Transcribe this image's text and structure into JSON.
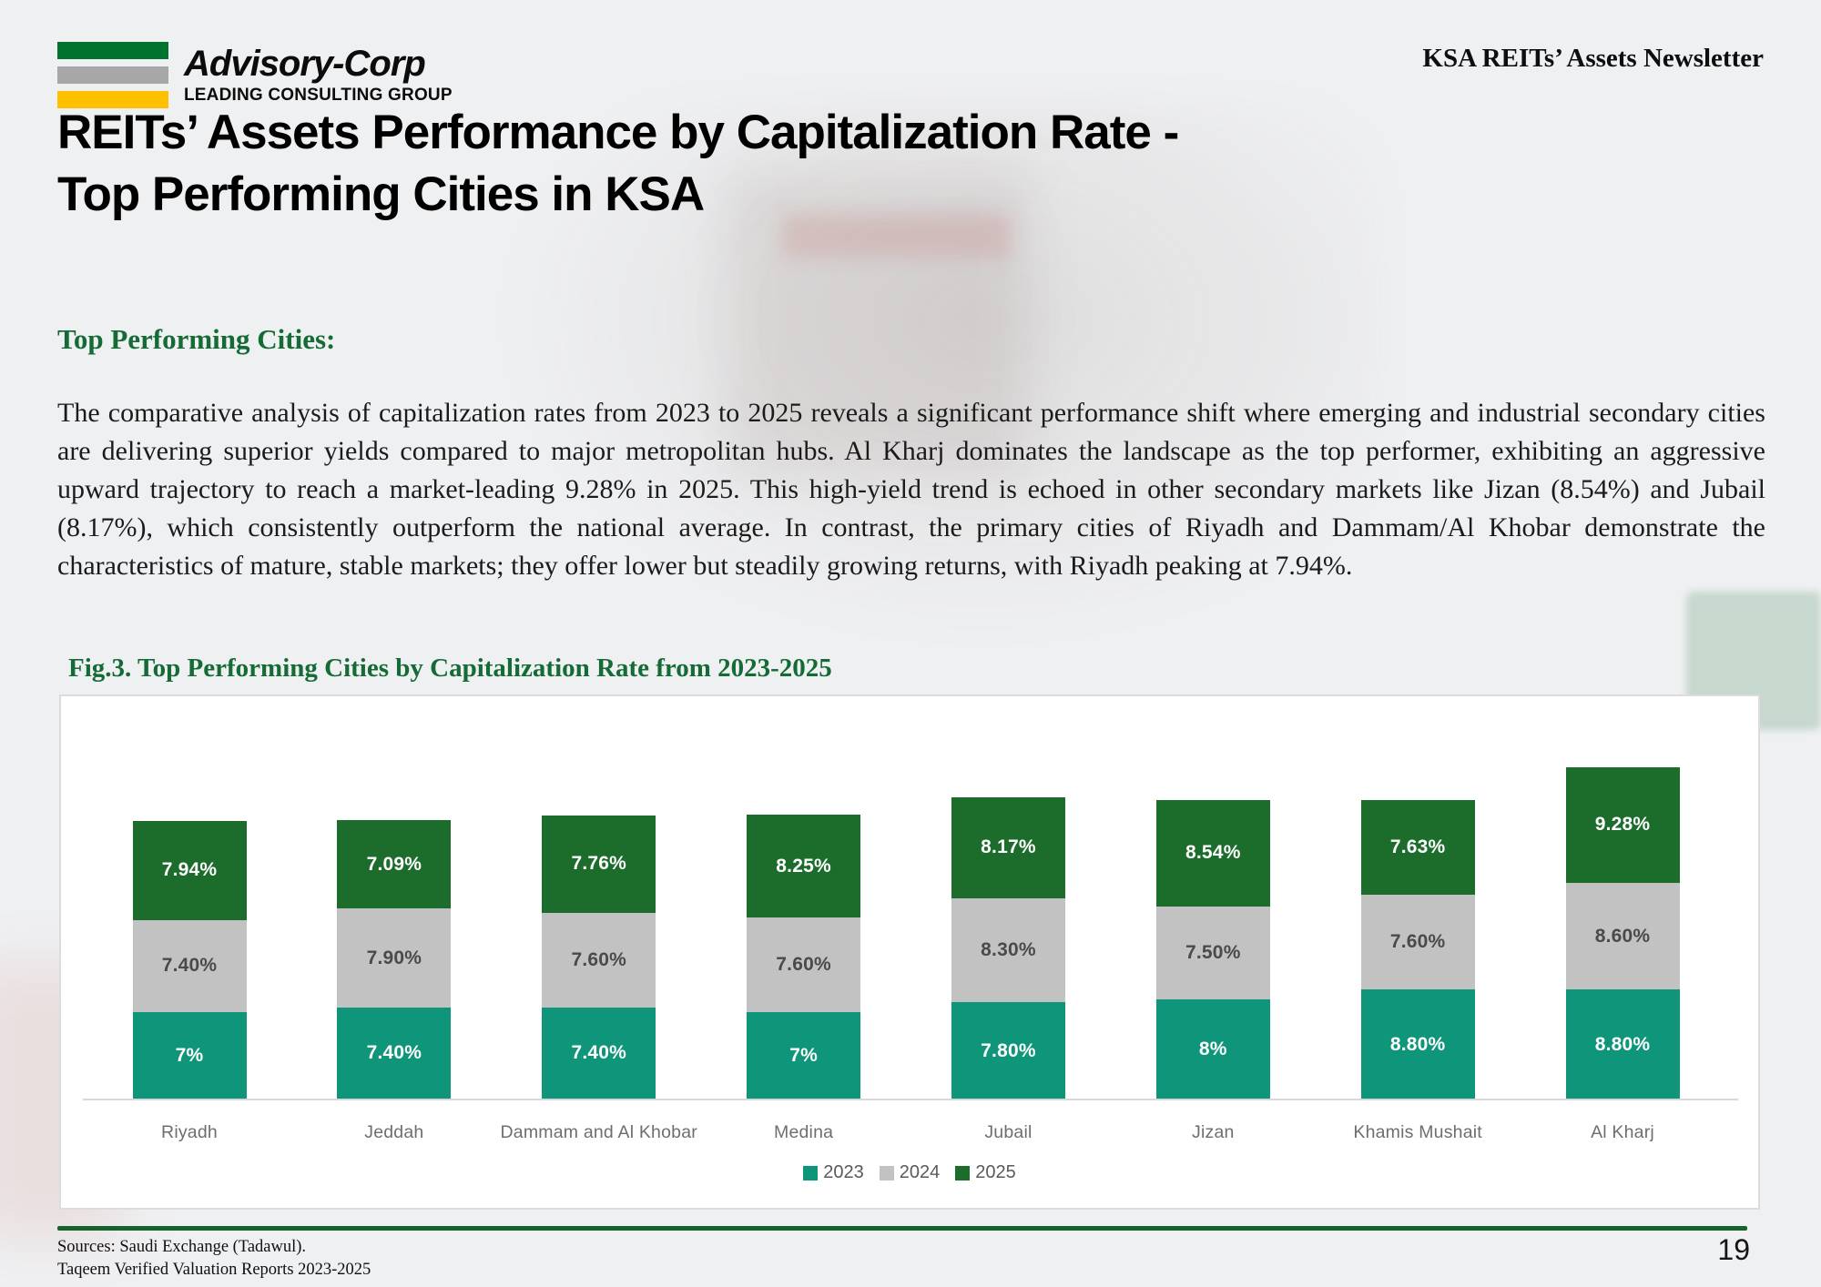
{
  "header": {
    "logo": {
      "brand": "Advisory-Corp",
      "tagline": "LEADING CONSULTING GROUP",
      "bar_colors": [
        "#00742f",
        "#a7a7a7",
        "#ffc000"
      ]
    },
    "newsletter_label": "KSA REITs’ Assets Newsletter"
  },
  "title": {
    "line1": "REITs’ Assets Performance by Capitalization Rate -",
    "line2": "Top Performing Cities in KSA"
  },
  "section": {
    "heading": "Top Performing Cities:",
    "heading_color": "#156b35",
    "body": "The comparative analysis of capitalization rates from 2023 to 2025 reveals a significant performance shift where emerging and industrial secondary cities are delivering superior yields compared to major metropolitan hubs. Al Kharj dominates the landscape as the top performer, exhibiting an aggressive upward trajectory to reach a market-leading 9.28% in 2025. This high-yield trend is echoed in other secondary markets like Jizan (8.54%) and Jubail (8.17%), which consistently outperform the national average. In contrast, the primary cities of Riyadh and Dammam/Al Khobar demonstrate the characteristics of mature, stable markets; they offer lower but steadily growing returns, with Riyadh peaking at 7.94%."
  },
  "figure": {
    "caption": "Fig.3. Top Performing Cities by Capitalization Rate from 2023-2025"
  },
  "chart_data": {
    "type": "bar",
    "subtype": "stacked-vertical",
    "title": "Fig.3. Top Performing Cities by Capitalization Rate from 2023-2025",
    "categories": [
      "Riyadh",
      "Jeddah",
      "Dammam and Al Khobar",
      "Medina",
      "Jubail",
      "Jizan",
      "Khamis Mushait",
      "Al Kharj"
    ],
    "series": [
      {
        "name": "2023",
        "color": "#0f9579",
        "label_color": "#ffffff",
        "values": [
          7,
          7.4,
          7.4,
          7,
          7.8,
          8,
          8.8,
          8.8
        ],
        "labels": [
          "7%",
          "7.40%",
          "7.40%",
          "7%",
          "7.80%",
          "8%",
          "8.80%",
          "8.80%"
        ]
      },
      {
        "name": "2024",
        "color": "#c2c2c3",
        "label_color": "#4a4a4a",
        "values": [
          7.4,
          7.9,
          7.6,
          7.6,
          8.3,
          7.5,
          7.6,
          8.6
        ],
        "labels": [
          "7.40%",
          "7.90%",
          "7.60%",
          "7.60%",
          "8.30%",
          "7.50%",
          "7.60%",
          "8.60%"
        ]
      },
      {
        "name": "2025",
        "color": "#1c6c2c",
        "label_color": "#ffffff",
        "values": [
          7.94,
          7.09,
          7.76,
          8.25,
          8.17,
          8.54,
          7.63,
          9.28
        ],
        "labels": [
          "7.94%",
          "7.09%",
          "7.76%",
          "8.25%",
          "8.17%",
          "8.54%",
          "7.63%",
          "9.28%"
        ]
      }
    ],
    "legend": [
      "2023",
      "2024",
      "2025"
    ],
    "legend_position": "bottom",
    "value_format": "percent",
    "grid": false,
    "axes_shown": false
  },
  "footer": {
    "sources_line1": "Sources: Saudi Exchange (Tadawul).",
    "sources_line2": "Taqeem Verified Valuation Reports 2023-2025",
    "divider_color": "#15622d",
    "page_number": "19"
  }
}
